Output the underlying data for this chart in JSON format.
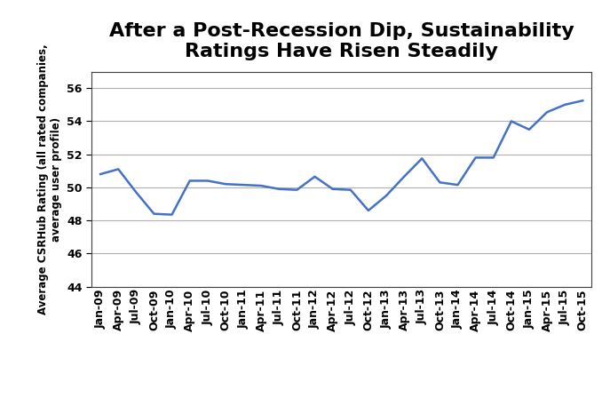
{
  "title": "After a Post-Recession Dip, Sustainability\nRatings Have Risen Steadily",
  "ylabel": "Average CSRHub Rating (all rated companies,\naverage user profile)",
  "xlabel": "",
  "line_color": "#4472c4",
  "background_color": "#ffffff",
  "grid_color": "#b0b0b0",
  "ylim": [
    44,
    57
  ],
  "yticks": [
    44,
    46,
    48,
    50,
    52,
    54,
    56
  ],
  "x_labels": [
    "Jan-09",
    "Apr-09",
    "Jul-09",
    "Oct-09",
    "Jan-10",
    "Apr-10",
    "Jul-10",
    "Oct-10",
    "Jan-11",
    "Apr-11",
    "Jul-11",
    "Oct-11",
    "Jan-12",
    "Apr-12",
    "Jul-12",
    "Oct-12",
    "Jan-13",
    "Apr-13",
    "Jul-13",
    "Oct-13",
    "Jan-14",
    "Apr-14",
    "Jul-14",
    "Oct-14",
    "Jan-15",
    "Apr-15",
    "Jul-15",
    "Oct-15"
  ],
  "y_values": [
    50.8,
    51.1,
    49.7,
    48.4,
    48.35,
    50.4,
    50.4,
    50.2,
    50.15,
    50.1,
    49.9,
    49.85,
    50.65,
    49.9,
    49.85,
    48.6,
    49.5,
    50.65,
    51.75,
    50.3,
    50.15,
    51.8,
    51.8,
    54.0,
    53.5,
    54.55,
    55.0,
    55.25
  ],
  "line_width": 1.8,
  "title_fontsize": 16,
  "label_fontsize": 8.5,
  "tick_fontsize": 9
}
